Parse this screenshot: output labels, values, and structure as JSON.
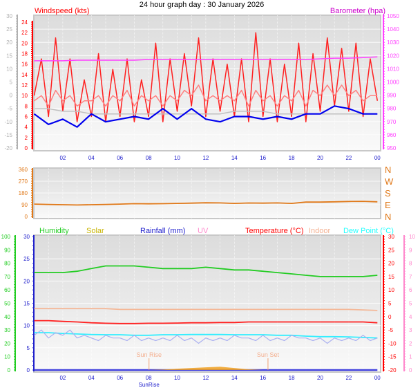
{
  "title": "24 hour graph day : 30 January 2026",
  "x_ticks": [
    "02",
    "04",
    "06",
    "08",
    "10",
    "12",
    "14",
    "16",
    "18",
    "20",
    "22",
    "00"
  ],
  "chart_data": [
    {
      "type": "line",
      "panel": "wind-barometer",
      "left_label": "Windspeed (kts)",
      "right_label": "Barometer (hpa)",
      "outer_left_ticks": [
        "30",
        "25",
        "20",
        "15",
        "10",
        "5",
        "0",
        "-5",
        "-10",
        "-15",
        "-20"
      ],
      "left_ticks": [
        "24",
        "22",
        "20",
        "18",
        "16",
        "14",
        "12",
        "10",
        "8",
        "6",
        "4",
        "2",
        "0"
      ],
      "right_ticks": [
        "1050",
        "1040",
        "1030",
        "1020",
        "1010",
        "1000",
        "990",
        "980",
        "970",
        "960",
        "950"
      ],
      "ylim_wind": [
        0,
        24
      ],
      "ylim_temp": [
        -20,
        30
      ],
      "ylim_baro": [
        950,
        1050
      ],
      "xlim_hours": [
        0,
        24
      ],
      "series": [
        {
          "color": "#ff2020",
          "axis": "wind",
          "x_step_hours": 0.5,
          "values": [
            10,
            17,
            6,
            21,
            7,
            17,
            5,
            13,
            6,
            18,
            5,
            15,
            6,
            17,
            5,
            13,
            6,
            20,
            5,
            17,
            7,
            18,
            8,
            21,
            6,
            17,
            7,
            16,
            6,
            17,
            5,
            22,
            6,
            17,
            5,
            16,
            6,
            20,
            5,
            18,
            7,
            21,
            8,
            19,
            7,
            20,
            6,
            17,
            9
          ]
        },
        {
          "color": "#ff8080",
          "axis": "wind",
          "x_step_hours": 0.5,
          "values": [
            9,
            10,
            8,
            11,
            9,
            10,
            8,
            9,
            9,
            10,
            8,
            10,
            9,
            11,
            8,
            10,
            9,
            10,
            8,
            10,
            9,
            11,
            10,
            12,
            9,
            10,
            9,
            10,
            9,
            11,
            8,
            11,
            9,
            10,
            8,
            10,
            9,
            11,
            8,
            11,
            10,
            12,
            10,
            12,
            10,
            11,
            9,
            10,
            10
          ]
        },
        {
          "color": "#c0c0c0",
          "axis": "wind",
          "x_step_hours": 1,
          "values": [
            7.5,
            7.5,
            7,
            7,
            6.5,
            6.5,
            6.5,
            6.5,
            6.5,
            6.5,
            6.5,
            6.5,
            6.5,
            6.5,
            7,
            7,
            7,
            6.5,
            6.5,
            6.5,
            6.5,
            6.5,
            6.5,
            6.5,
            6.5
          ]
        },
        {
          "color": "#0000ee",
          "axis": "wind",
          "x_step_hours": 1,
          "values": [
            6.5,
            4.5,
            5.5,
            4,
            6.5,
            5,
            5.5,
            6,
            5.5,
            7.5,
            5.5,
            7.5,
            5.5,
            5,
            6,
            6,
            5.5,
            6,
            5.5,
            6.5,
            6.5,
            8,
            7.5,
            6.5,
            6.5
          ]
        },
        {
          "color": "#ff40ff",
          "axis": "baro",
          "x_step_hours": 1,
          "values": [
            1016,
            1016,
            1016,
            1016.5,
            1016.5,
            1016.5,
            1016.5,
            1016.5,
            1017,
            1017,
            1017,
            1017,
            1017,
            1017,
            1017,
            1017,
            1017,
            1017,
            1017,
            1017,
            1017.5,
            1018,
            1018,
            1018.5,
            1019
          ]
        }
      ]
    },
    {
      "type": "line",
      "panel": "wind-direction",
      "left_ticks": [
        "360",
        "270",
        "180",
        "90",
        "0"
      ],
      "right_ticks": [
        "N",
        "W",
        "S",
        "E",
        "N"
      ],
      "ylim": [
        0,
        360
      ],
      "series": [
        {
          "color": "#e07818",
          "x_step_hours": 1,
          "values": [
            95,
            92,
            90,
            88,
            90,
            92,
            95,
            98,
            97,
            98,
            100,
            102,
            105,
            104,
            100,
            103,
            102,
            104,
            100,
            110,
            110,
            112,
            115,
            116,
            112
          ]
        }
      ]
    },
    {
      "type": "line",
      "panel": "temperature-humidity",
      "legend": [
        {
          "label": "Humidity",
          "color": "#22cc22"
        },
        {
          "label": "Solar",
          "color": "#c8b400"
        },
        {
          "label": "Rainfall (mm)",
          "color": "#2020cc"
        },
        {
          "label": "UV",
          "color": "#ff88cc"
        },
        {
          "label": "Temperature (°C)",
          "color": "#ff0000"
        },
        {
          "label": "Indoor",
          "color": "#f4b090"
        },
        {
          "label": "Dew Point (°C)",
          "color": "#22ffff"
        }
      ],
      "humidity_ticks": [
        "100",
        "90",
        "80",
        "70",
        "60",
        "50",
        "40",
        "30",
        "20",
        "10",
        "0"
      ],
      "rain_ticks": [
        "30",
        "25",
        "20",
        "15",
        "10",
        "5",
        "0"
      ],
      "temp_ticks": [
        "30",
        "25",
        "20",
        "15",
        "10",
        "5",
        "0",
        "-5",
        "-10",
        "-15",
        "-20"
      ],
      "uv_ticks": [
        "10",
        "9",
        "8",
        "7",
        "6",
        "5",
        "4",
        "3",
        "2",
        "1",
        "0"
      ],
      "ylim_humidity": [
        0,
        100
      ],
      "ylim_rain": [
        0,
        30
      ],
      "ylim_temp": [
        -20,
        30
      ],
      "ylim_uv": [
        0,
        10
      ],
      "series": [
        {
          "key": "humidity",
          "color": "#22cc22",
          "axis": "humidity",
          "x_step_hours": 1,
          "values": [
            73,
            73,
            73,
            74,
            76,
            78,
            78,
            78,
            77,
            76,
            76,
            76,
            77,
            76,
            75,
            75,
            74,
            73,
            72,
            71,
            70,
            70,
            70,
            70,
            71
          ]
        },
        {
          "key": "indoor",
          "color": "#f4b898",
          "axis": "temp",
          "x_step_hours": 1,
          "values": [
            3,
            3,
            3,
            3,
            3,
            3,
            2.7,
            2.7,
            2.7,
            2.7,
            2.7,
            2.7,
            2.7,
            2.7,
            2.7,
            2.7,
            2.7,
            2.7,
            2.7,
            2.7,
            2.7,
            2.7,
            2.7,
            2.5,
            2.3
          ]
        },
        {
          "key": "temperature",
          "color": "#ff2020",
          "axis": "temp",
          "x_step_hours": 1,
          "values": [
            -1.5,
            -1.5,
            -1.8,
            -2,
            -2.3,
            -2.5,
            -2.6,
            -2.6,
            -2.5,
            -2.5,
            -2.4,
            -2.3,
            -2.3,
            -2.2,
            -2.2,
            -2,
            -2,
            -2,
            -2,
            -2,
            -2,
            -2,
            -2,
            -2,
            -2.3
          ]
        },
        {
          "key": "dew-point",
          "color": "#33eeff",
          "axis": "temp",
          "x_step_hours": 1,
          "values": [
            -6,
            -6,
            -6.3,
            -6.5,
            -6.7,
            -6.8,
            -6.8,
            -7,
            -7,
            -6.8,
            -6.8,
            -6.7,
            -6.7,
            -6.7,
            -6.8,
            -6.8,
            -6.8,
            -7,
            -7,
            -7.3,
            -7.5,
            -7.5,
            -7.6,
            -7.8,
            -8
          ]
        },
        {
          "key": "other",
          "color": "#aab0f0",
          "axis": "temp",
          "x_step_hours": 0.5,
          "values": [
            -7,
            -5,
            -8,
            -6,
            -7,
            -5,
            -8,
            -7,
            -8,
            -9,
            -7,
            -8,
            -8,
            -9,
            -7,
            -9,
            -8,
            -9,
            -8,
            -9,
            -7,
            -9,
            -8,
            -10,
            -8,
            -9,
            -8,
            -9,
            -7,
            -8,
            -8,
            -9,
            -7,
            -9,
            -8,
            -9,
            -7,
            -8,
            -8,
            -9,
            -8,
            -10,
            -8,
            -9,
            -8,
            -9,
            -7,
            -9,
            -8
          ]
        },
        {
          "key": "rainfall",
          "color": "#4040dd",
          "axis": "rain",
          "x_step_hours": 1,
          "values": [
            0,
            0,
            0,
            0,
            0,
            0,
            0,
            0,
            0,
            0,
            0,
            0,
            0,
            0,
            0,
            0,
            0,
            0,
            0,
            0,
            0,
            0,
            0,
            0,
            0
          ]
        },
        {
          "key": "solar",
          "color": "#f0a020",
          "axis": "humidity",
          "x_step_hours": 1,
          "fill": true,
          "values": [
            0,
            0,
            0,
            0,
            0,
            0,
            0,
            0,
            0,
            0.3,
            1,
            1.5,
            2,
            2.5,
            1.5,
            0.5,
            0,
            0,
            0,
            0,
            0,
            0,
            0,
            0,
            0
          ]
        }
      ],
      "annotations": [
        {
          "label": "Sun Rise",
          "hour": 8.03
        },
        {
          "label": "Sun Set",
          "hour": 16.35
        }
      ],
      "x_tick_extra": "SunRise"
    }
  ]
}
